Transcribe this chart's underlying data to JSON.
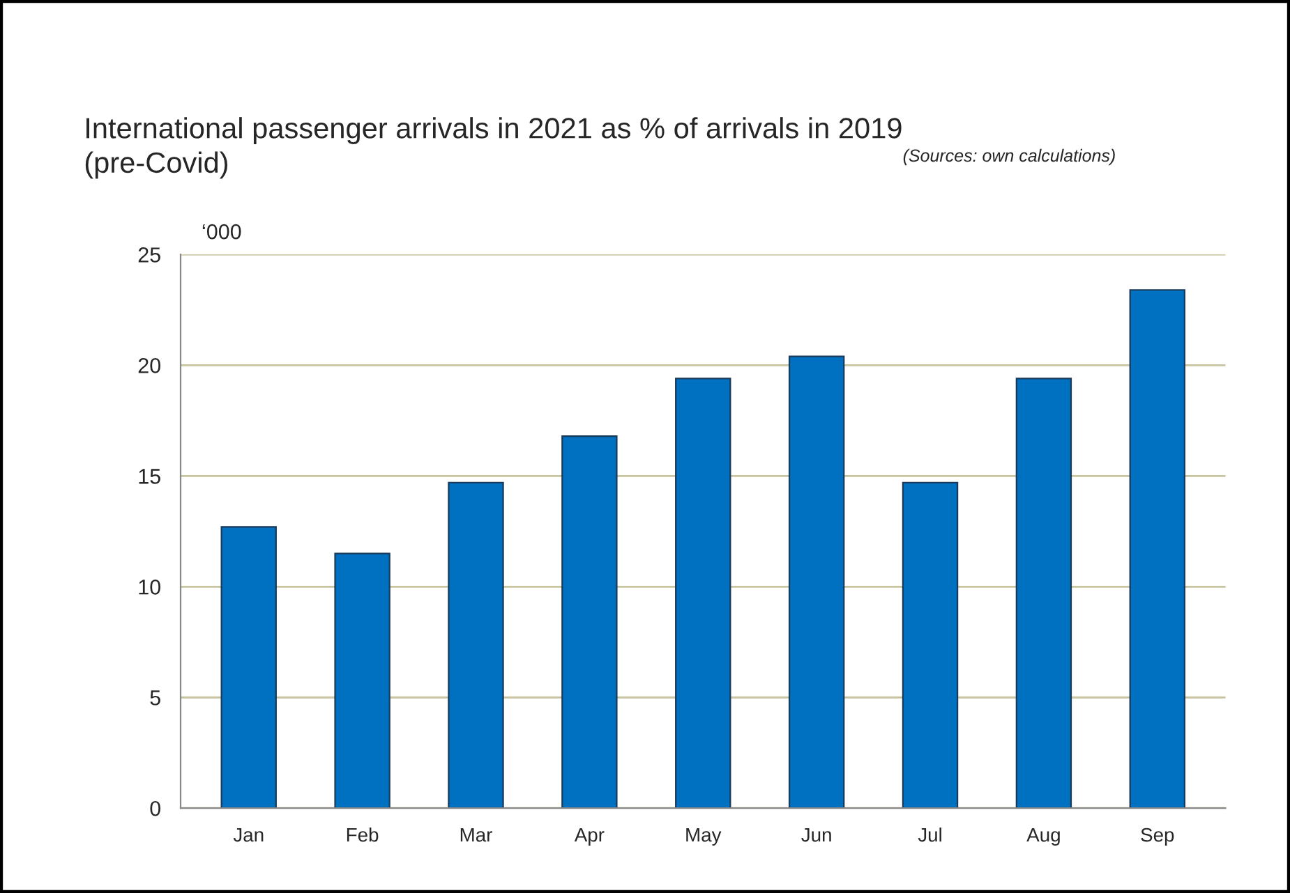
{
  "chart_data": {
    "type": "bar",
    "title": "International passenger arrivals in 2021 as % of arrivals in 2019\n(pre-Covid)",
    "annotations": [
      "(Sources: own calculations)"
    ],
    "ylabel": "‘000",
    "categories": [
      "Jan",
      "Feb",
      "Mar",
      "Apr",
      "May",
      "Jun",
      "Jul",
      "Aug",
      "Sep"
    ],
    "values": [
      12.7,
      11.5,
      14.7,
      16.8,
      19.4,
      20.4,
      14.7,
      19.4,
      23.4
    ],
    "color": "#0070c0",
    "ylim": [
      0,
      25
    ],
    "yticks": [
      0,
      5,
      10,
      15,
      20,
      25
    ],
    "grid": "y"
  }
}
